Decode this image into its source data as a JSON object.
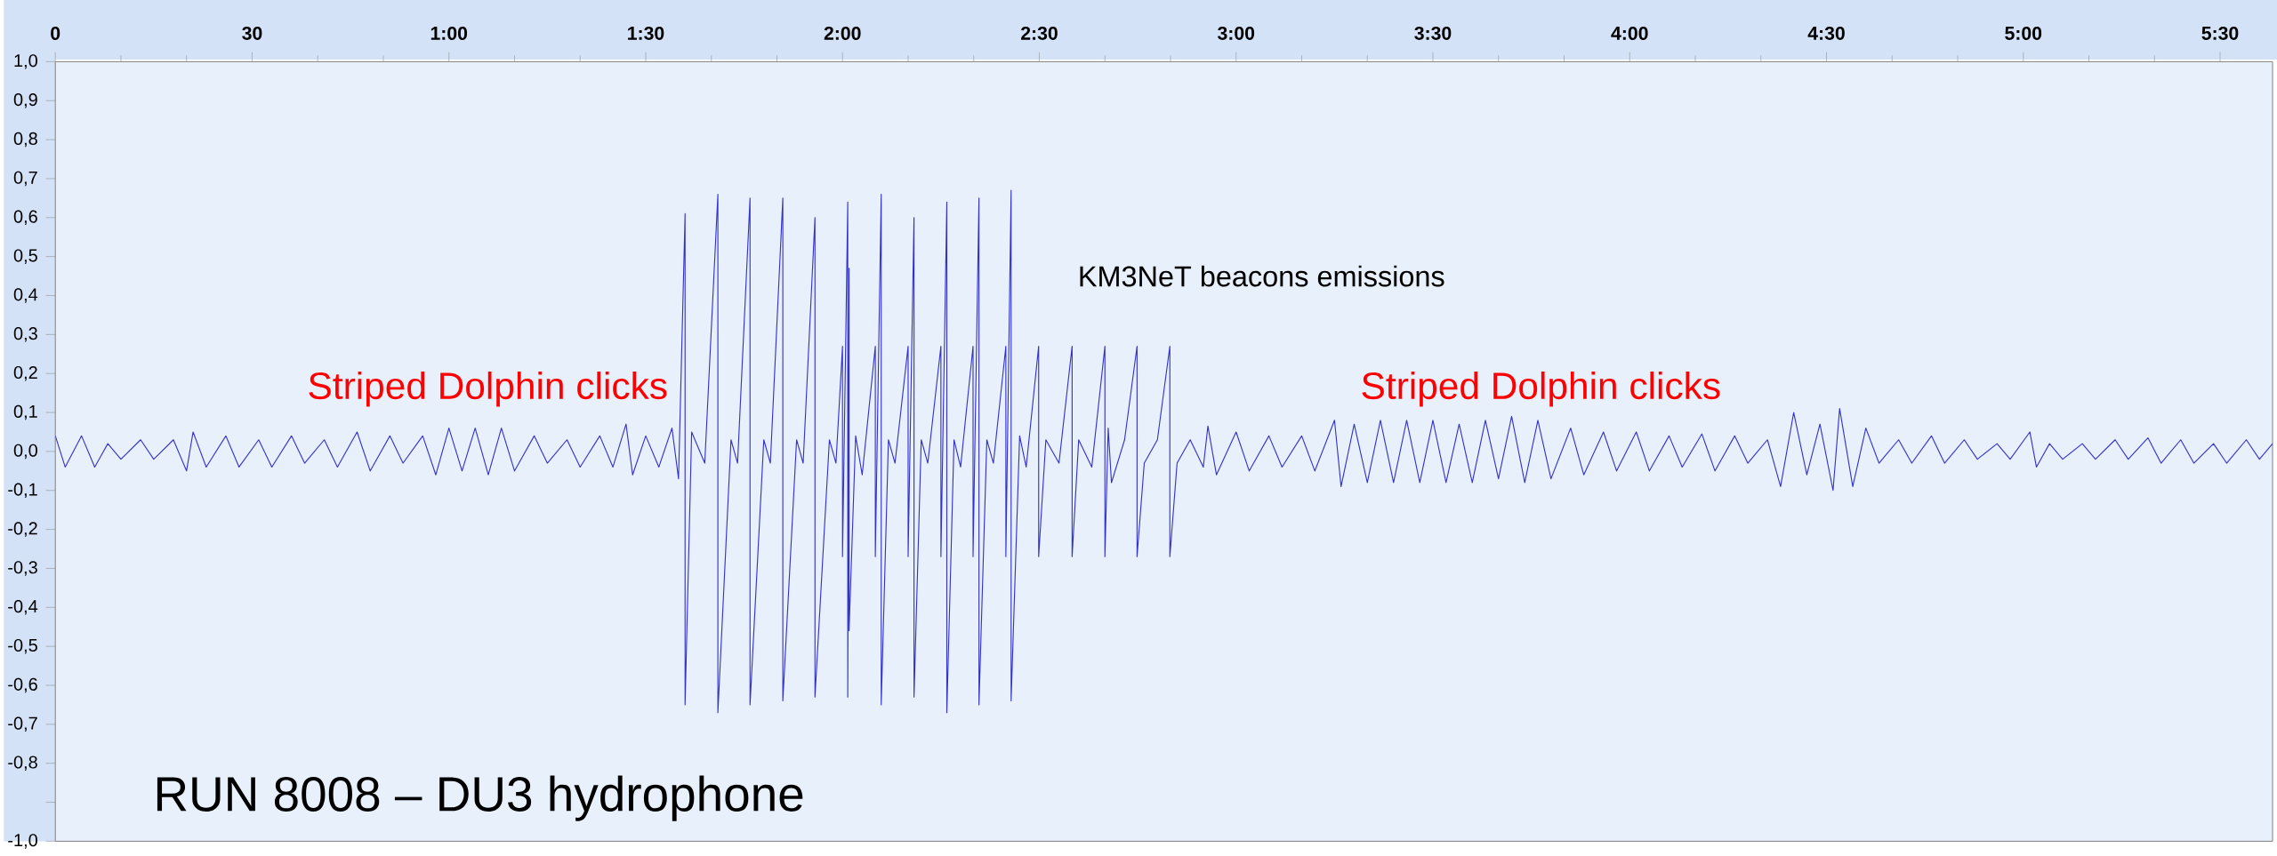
{
  "chart_data": {
    "type": "line",
    "title": "RUN 8008 – DU3 hydrophone",
    "xlim": [
      0,
      338
    ],
    "ylim": [
      -1.0,
      1.0
    ],
    "xticks": [
      {
        "value": 0,
        "label": "0"
      },
      {
        "value": 30,
        "label": "30"
      },
      {
        "value": 60,
        "label": "1:00"
      },
      {
        "value": 90,
        "label": "1:30"
      },
      {
        "value": 120,
        "label": "2:00"
      },
      {
        "value": 150,
        "label": "2:30"
      },
      {
        "value": 180,
        "label": "3:00"
      },
      {
        "value": 210,
        "label": "3:30"
      },
      {
        "value": 240,
        "label": "4:00"
      },
      {
        "value": 270,
        "label": "4:30"
      },
      {
        "value": 300,
        "label": "5:00"
      },
      {
        "value": 330,
        "label": "5:30"
      }
    ],
    "yticks": [
      {
        "value": 1.0,
        "label": "1,0"
      },
      {
        "value": 0.9,
        "label": "0,9"
      },
      {
        "value": 0.8,
        "label": "0,8"
      },
      {
        "value": 0.7,
        "label": "0,7"
      },
      {
        "value": 0.6,
        "label": "0,6"
      },
      {
        "value": 0.5,
        "label": "0,5"
      },
      {
        "value": 0.4,
        "label": "0,4"
      },
      {
        "value": 0.3,
        "label": "0,3"
      },
      {
        "value": 0.2,
        "label": "0,2"
      },
      {
        "value": 0.1,
        "label": "0,1"
      },
      {
        "value": 0.0,
        "label": "0,0"
      },
      {
        "value": -0.1,
        "label": "-0,1"
      },
      {
        "value": -0.2,
        "label": "-0,2"
      },
      {
        "value": -0.3,
        "label": "-0,3"
      },
      {
        "value": -0.4,
        "label": "-0,4"
      },
      {
        "value": -0.5,
        "label": "-0,5"
      },
      {
        "value": -0.6,
        "label": "-0,6"
      },
      {
        "value": -0.7,
        "label": "-0,7"
      },
      {
        "value": -0.8,
        "label": "-0,8"
      },
      {
        "value": -0.9,
        "label": null
      },
      {
        "value": -1.0,
        "label": "-1,0"
      }
    ],
    "annotations": [
      "Striped Dolphin clicks",
      "Striped Dolphin clicks",
      "KM3NeT beacons emissions"
    ],
    "series": [
      {
        "color": "#3333cc",
        "x": [
          0,
          1.5,
          4,
          6,
          8,
          10,
          13,
          15,
          18,
          20,
          21,
          23,
          26,
          28,
          31,
          33,
          36,
          38,
          41,
          43,
          46,
          48,
          51,
          53,
          56,
          58,
          60,
          62,
          64,
          66,
          68,
          70,
          73,
          75,
          78,
          80,
          83,
          85,
          87,
          88,
          90,
          92,
          94,
          95,
          96,
          96,
          97,
          99,
          101,
          101,
          103,
          104,
          105.9,
          105.9,
          108,
          109,
          110.9,
          110.9,
          113,
          114,
          115.8,
          115.8,
          118,
          119,
          120.0,
          120.0,
          120.8,
          120.8,
          121.0,
          121.0,
          122,
          123,
          125.0,
          125.0,
          125.9,
          125.9,
          127,
          128,
          130.0,
          130.0,
          130.9,
          130.9,
          132,
          133,
          135.0,
          135.0,
          135.9,
          135.9,
          137,
          138,
          139.9,
          139.9,
          140.8,
          140.8,
          142,
          143,
          144.9,
          144.9,
          145.7,
          145.7,
          147,
          148,
          149.9,
          149.9,
          151,
          153,
          155,
          155,
          156,
          158,
          160,
          160,
          160.5,
          161,
          163,
          164.9,
          164.9,
          166,
          168,
          169.9,
          169.9,
          171,
          173,
          175,
          175.7,
          177,
          180,
          182,
          185,
          187,
          190,
          192,
          195,
          196,
          198,
          200,
          202,
          204,
          206,
          208,
          210,
          212,
          214,
          216,
          218,
          220,
          222,
          224,
          226,
          228,
          231,
          233,
          236,
          238,
          241,
          243,
          246,
          248,
          251,
          253,
          256,
          258,
          261,
          263,
          265,
          267,
          269,
          271,
          272,
          274,
          276,
          278,
          281,
          283,
          286,
          288,
          291,
          293,
          296,
          298,
          301,
          302,
          304,
          306,
          309,
          311,
          314,
          316,
          319,
          321,
          324,
          326,
          329,
          331,
          334,
          336,
          338
        ],
        "values": [
          0.04,
          -0.04,
          0.04,
          -0.04,
          0.02,
          -0.02,
          0.03,
          -0.02,
          0.03,
          -0.05,
          0.05,
          -0.04,
          0.04,
          -0.04,
          0.03,
          -0.04,
          0.04,
          -0.03,
          0.03,
          -0.04,
          0.05,
          -0.05,
          0.04,
          -0.03,
          0.04,
          -0.06,
          0.06,
          -0.05,
          0.06,
          -0.06,
          0.06,
          -0.05,
          0.04,
          -0.03,
          0.03,
          -0.04,
          0.04,
          -0.04,
          0.07,
          -0.06,
          0.04,
          -0.04,
          0.06,
          -0.07,
          0.61,
          -0.65,
          0.05,
          -0.03,
          0.66,
          -0.67,
          0.03,
          -0.03,
          0.65,
          -0.65,
          0.03,
          -0.03,
          0.65,
          -0.64,
          0.03,
          -0.03,
          0.6,
          -0.63,
          0.03,
          -0.03,
          0.27,
          -0.27,
          0.64,
          -0.63,
          0.47,
          -0.46,
          0.04,
          -0.06,
          0.27,
          -0.27,
          0.66,
          -0.65,
          0.03,
          -0.03,
          0.27,
          -0.27,
          0.6,
          -0.63,
          0.03,
          -0.03,
          0.27,
          -0.27,
          0.64,
          -0.67,
          0.03,
          -0.04,
          0.27,
          -0.27,
          0.65,
          -0.65,
          0.03,
          -0.03,
          0.27,
          -0.27,
          0.67,
          -0.64,
          0.04,
          -0.04,
          0.27,
          -0.27,
          0.03,
          -0.03,
          0.27,
          -0.27,
          0.03,
          -0.04,
          0.27,
          -0.27,
          0.06,
          -0.08,
          0.03,
          0.27,
          -0.27,
          -0.03,
          0.03,
          0.27,
          -0.27,
          -0.03,
          0.03,
          -0.04,
          0.065,
          -0.06,
          0.05,
          -0.05,
          0.04,
          -0.04,
          0.04,
          -0.05,
          0.08,
          -0.09,
          0.07,
          -0.08,
          0.08,
          -0.08,
          0.08,
          -0.08,
          0.08,
          -0.08,
          0.07,
          -0.08,
          0.08,
          -0.07,
          0.09,
          -0.08,
          0.08,
          -0.07,
          0.06,
          -0.06,
          0.05,
          -0.05,
          0.05,
          -0.05,
          0.04,
          -0.04,
          0.045,
          -0.05,
          0.04,
          -0.03,
          0.03,
          -0.09,
          0.1,
          -0.06,
          0.07,
          -0.1,
          0.11,
          -0.09,
          0.06,
          -0.03,
          0.03,
          -0.03,
          0.04,
          -0.03,
          0.03,
          -0.02,
          0.02,
          -0.02,
          0.05,
          -0.04,
          0.02,
          -0.02,
          0.02,
          -0.02,
          0.03,
          -0.02,
          0.035,
          -0.03,
          0.03,
          -0.03,
          0.02,
          -0.03,
          0.03,
          -0.02,
          0.02
        ]
      }
    ],
    "marker": "none",
    "line_style": "solid"
  }
}
